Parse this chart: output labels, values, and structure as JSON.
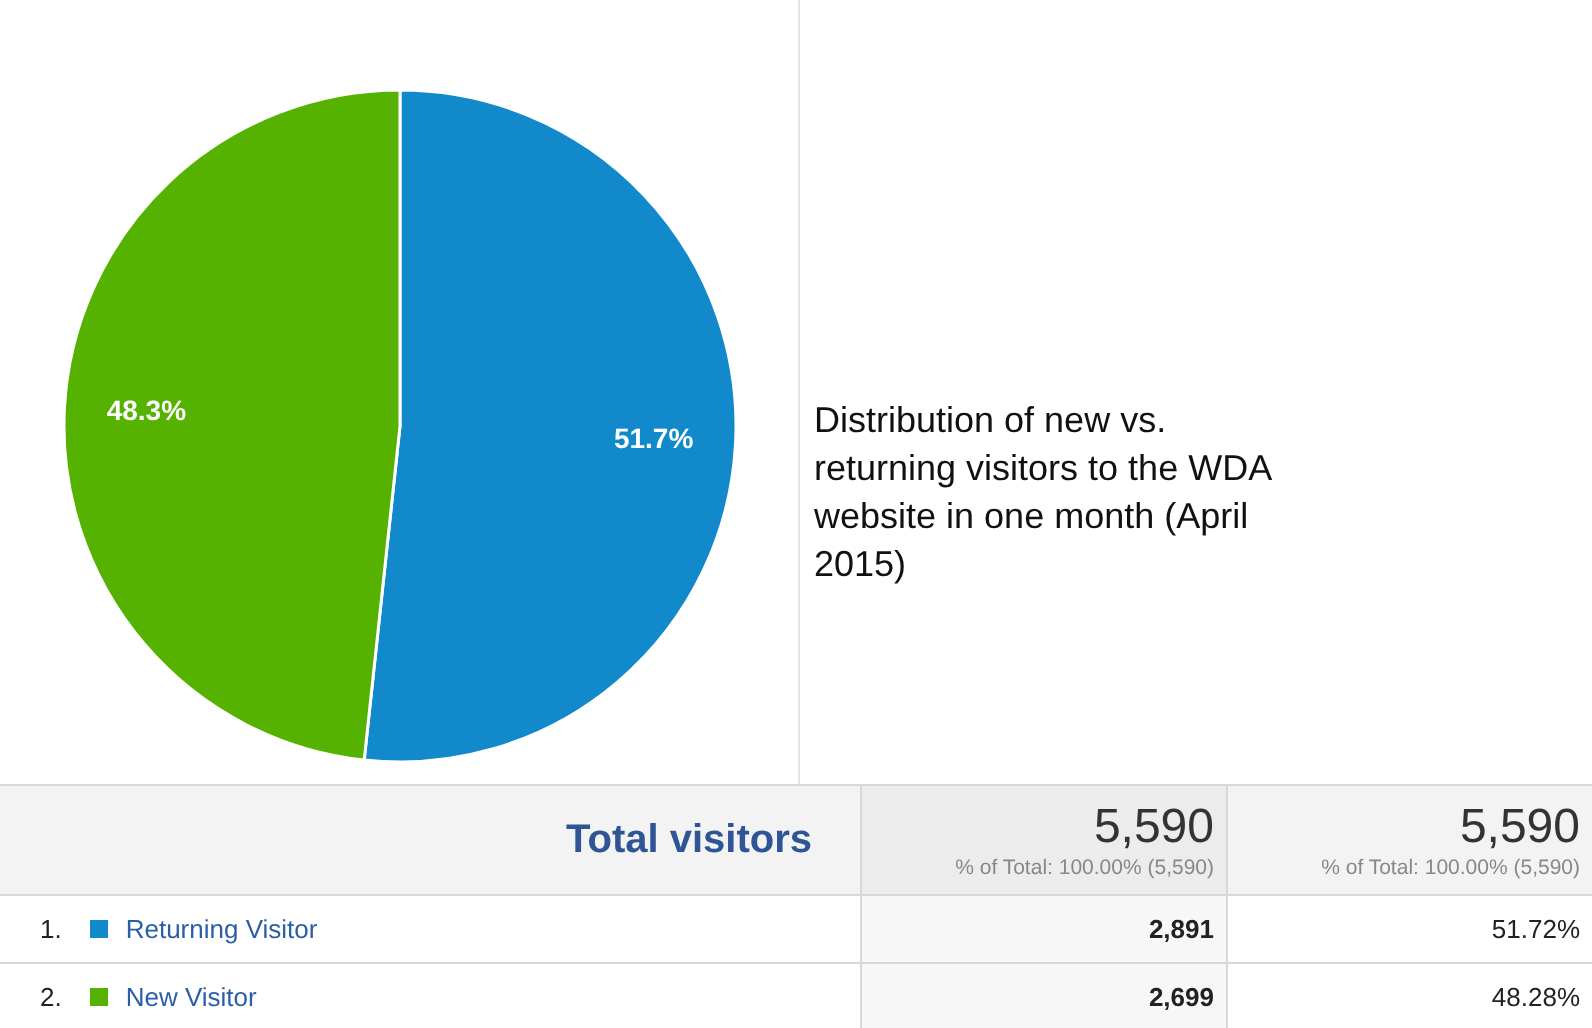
{
  "chart_data": {
    "type": "pie",
    "title": "Distribution of new vs. returning visitors to the WDA website in one month (April 2015)",
    "categories": [
      "Returning Visitor",
      "New Visitor"
    ],
    "values": [
      51.7,
      48.3
    ],
    "colors": [
      "#1189cb",
      "#56b200"
    ],
    "value_labels": [
      "51.7%",
      "48.3%"
    ],
    "legend": "bottom",
    "annotations": [
      "Total visitors",
      "5,590",
      "% of Total: 100.00% (5,590)",
      "5,590",
      "% of Total: 100.00% (5,590)",
      "1.",
      "2,891",
      "51.72%",
      "2.",
      "2,699",
      "48.28%"
    ]
  }
}
